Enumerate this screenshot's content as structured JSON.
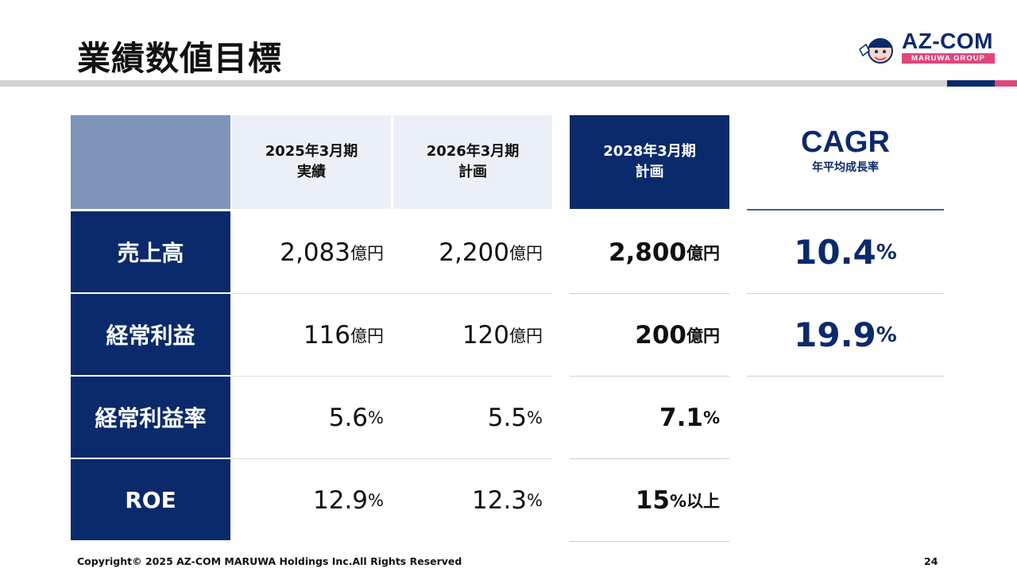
{
  "title": "業績数値目標",
  "logo": {
    "name": "AZ-COM",
    "sub": "MARUWA GROUP"
  },
  "columns": [
    {
      "line1": "2025年3月期",
      "line2": "実績"
    },
    {
      "line1": "2026年3月期",
      "line2": "計画"
    },
    {
      "line1": "2028年3月期",
      "line2": "計画"
    }
  ],
  "cagr": {
    "title": "CAGR",
    "subtitle": "年平均成長率",
    "values": [
      {
        "num": "10.4",
        "unit": "%"
      },
      {
        "num": "19.9",
        "unit": "%"
      }
    ]
  },
  "rows": [
    {
      "label": "売上高",
      "values": [
        {
          "num": "2,083",
          "unit": "億円"
        },
        {
          "num": "2,200",
          "unit": "億円"
        },
        {
          "num": "2,800",
          "unit": "億円"
        }
      ]
    },
    {
      "label": "経常利益",
      "values": [
        {
          "num": "116",
          "unit": "億円"
        },
        {
          "num": "120",
          "unit": "億円"
        },
        {
          "num": "200",
          "unit": "億円"
        }
      ]
    },
    {
      "label": "経常利益率",
      "values": [
        {
          "num": "5.6",
          "unit": "%"
        },
        {
          "num": "5.5",
          "unit": "%"
        },
        {
          "num": "7.1",
          "unit": "%"
        }
      ]
    },
    {
      "label": "ROE",
      "values": [
        {
          "num": "12.9",
          "unit": "%"
        },
        {
          "num": "12.3",
          "unit": "%"
        },
        {
          "num": "15",
          "unit": "%以上"
        }
      ]
    }
  ],
  "footer": {
    "copyright": "Copyright© 2025 AZ-COM MARUWA Holdings Inc.All Rights Reserved",
    "page": "24"
  },
  "colors": {
    "navy": "#0b2a6b",
    "pink": "#e0457b",
    "header_light": "#ebf0f8",
    "corner": "#7e94b8"
  }
}
